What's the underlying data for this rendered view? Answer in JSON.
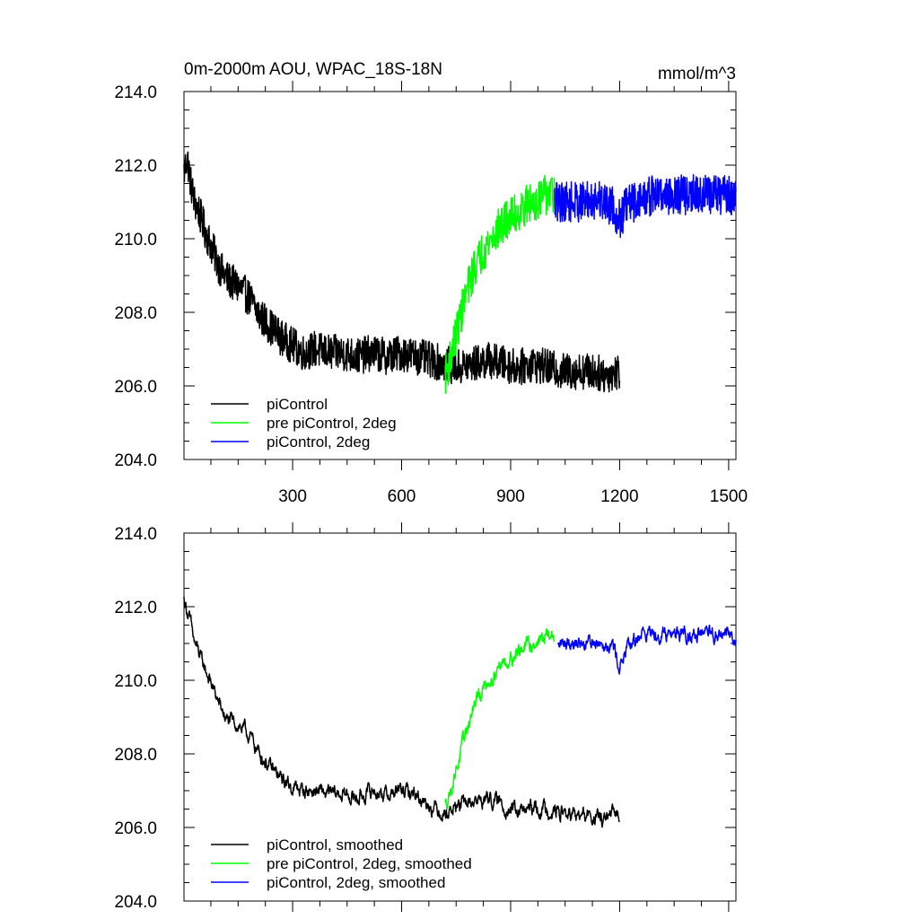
{
  "figure": {
    "title": "0m-2000m AOU, WPAC_18S-18N",
    "units": "mmol/m^3"
  },
  "chart_data": [
    {
      "type": "line",
      "title": "0m-2000m AOU, WPAC_18S-18N",
      "units_label": "mmol/m^3",
      "xlabel": "",
      "ylabel": "",
      "xlim": [
        1,
        1520
      ],
      "ylim": [
        204,
        214
      ],
      "x_ticks": [
        300,
        600,
        900,
        1200,
        1500
      ],
      "x_tick_labels": [
        "300",
        "600",
        "900",
        "1200",
        "1500"
      ],
      "y_ticks": [
        204,
        206,
        208,
        210,
        212,
        214
      ],
      "y_tick_labels": [
        "204.0",
        "206.0",
        "208.0",
        "210.0",
        "212.0",
        "214.0"
      ],
      "legend": {
        "placement": "bottom-left"
      },
      "series": [
        {
          "name": "piControl",
          "color": "#000000",
          "x": [
            1,
            10,
            20,
            30,
            40,
            50,
            60,
            80,
            100,
            120,
            150,
            180,
            210,
            240,
            270,
            300,
            330,
            360,
            400,
            440,
            480,
            520,
            560,
            600,
            640,
            680,
            720,
            760,
            800,
            840,
            880,
            920,
            960,
            1000,
            1040,
            1080,
            1120,
            1160,
            1200
          ],
          "values": [
            211.8,
            212.2,
            211.5,
            211.0,
            210.8,
            210.5,
            210.2,
            209.7,
            209.2,
            208.9,
            208.7,
            208.4,
            207.9,
            207.6,
            207.3,
            207.1,
            206.9,
            207.0,
            206.9,
            206.9,
            206.8,
            206.9,
            206.8,
            206.9,
            206.8,
            206.7,
            206.6,
            206.5,
            206.6,
            206.7,
            206.6,
            206.5,
            206.6,
            206.5,
            206.4,
            206.4,
            206.4,
            206.3,
            206.4
          ],
          "noise_amplitude": 0.5
        },
        {
          "name": "pre piControl, 2deg",
          "color": "#00ff00",
          "x": [
            720,
            730,
            740,
            750,
            760,
            770,
            780,
            790,
            800,
            820,
            840,
            860,
            880,
            900,
            920,
            940,
            960,
            980,
            1000,
            1020
          ],
          "values": [
            206.3,
            206.6,
            207.0,
            207.4,
            207.8,
            208.2,
            208.6,
            208.9,
            209.2,
            209.6,
            209.9,
            210.2,
            210.4,
            210.6,
            210.7,
            210.9,
            211.0,
            211.1,
            211.2,
            211.2
          ],
          "noise_amplitude": 0.55
        },
        {
          "name": "piControl, 2deg",
          "color": "#0000ff",
          "x": [
            1020,
            1060,
            1100,
            1140,
            1180,
            1200,
            1220,
            1260,
            1300,
            1340,
            1380,
            1420,
            1460,
            1500,
            1520
          ],
          "values": [
            211.0,
            211.0,
            211.0,
            211.1,
            210.9,
            210.5,
            210.9,
            211.1,
            211.2,
            211.2,
            211.2,
            211.2,
            211.2,
            211.2,
            211.1
          ],
          "noise_amplitude": 0.55
        }
      ]
    },
    {
      "type": "line",
      "title": "",
      "xlabel": "",
      "ylabel": "",
      "xlim": [
        1,
        1520
      ],
      "ylim": [
        204,
        214
      ],
      "x_ticks": [
        300,
        600,
        900,
        1200,
        1500
      ],
      "y_ticks": [
        204,
        206,
        208,
        210,
        212,
        214
      ],
      "y_tick_labels": [
        "204.0",
        "206.0",
        "208.0",
        "210.0",
        "212.0",
        "214.0"
      ],
      "legend": {
        "placement": "bottom-left"
      },
      "series": [
        {
          "name": "piControl, smoothed",
          "color": "#000000",
          "x": [
            1,
            10,
            20,
            30,
            40,
            50,
            60,
            80,
            100,
            120,
            150,
            180,
            210,
            240,
            270,
            300,
            330,
            360,
            400,
            440,
            480,
            520,
            560,
            600,
            640,
            680,
            720,
            760,
            800,
            840,
            880,
            920,
            960,
            1000,
            1040,
            1080,
            1120,
            1160,
            1200
          ],
          "values": [
            212.2,
            211.9,
            211.5,
            211.0,
            210.8,
            210.5,
            210.3,
            209.8,
            209.3,
            208.9,
            208.8,
            208.5,
            208.0,
            207.6,
            207.3,
            207.1,
            207.0,
            207.0,
            206.9,
            206.9,
            206.8,
            207.0,
            206.9,
            207.0,
            206.9,
            206.6,
            206.4,
            206.6,
            206.7,
            206.8,
            206.6,
            206.4,
            206.5,
            206.5,
            206.4,
            206.3,
            206.3,
            206.2,
            206.4
          ],
          "noise_amplitude": 0.25
        },
        {
          "name": "pre piControl, 2deg, smoothed",
          "color": "#00ff00",
          "x": [
            720,
            730,
            740,
            750,
            760,
            770,
            780,
            790,
            800,
            820,
            840,
            860,
            880,
            900,
            920,
            940,
            960,
            980,
            1000,
            1020
          ],
          "values": [
            206.6,
            206.9,
            207.2,
            207.6,
            207.9,
            208.3,
            208.7,
            209.0,
            209.3,
            209.7,
            210.0,
            210.3,
            210.5,
            210.6,
            210.8,
            210.9,
            211.0,
            211.1,
            211.2,
            211.2
          ],
          "noise_amplitude": 0.25
        },
        {
          "name": "piControl, 2deg, smoothed",
          "color": "#0000ff",
          "x": [
            1030,
            1060,
            1100,
            1140,
            1180,
            1200,
            1220,
            1260,
            1300,
            1340,
            1380,
            1420,
            1460,
            1500,
            1520
          ],
          "values": [
            210.9,
            211.1,
            211.0,
            211.1,
            211.0,
            210.4,
            210.8,
            211.3,
            211.3,
            211.3,
            211.3,
            211.2,
            211.2,
            211.3,
            211.1
          ],
          "noise_amplitude": 0.25
        }
      ]
    }
  ]
}
